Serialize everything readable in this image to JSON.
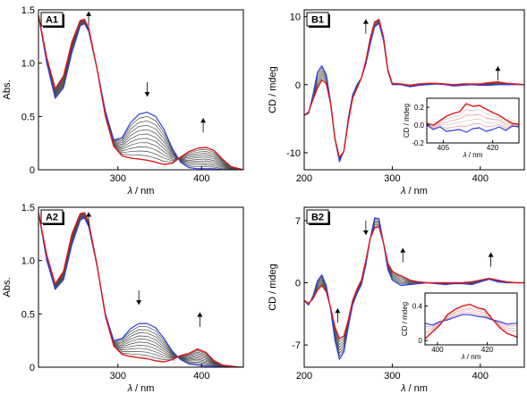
{
  "colors": {
    "blue": "#2b3de6",
    "red": "#e01818",
    "grey": "#4a4a4a",
    "light_red": "#f08c8c",
    "light_grey": "#c8c8c8"
  },
  "chart_data": [
    {
      "id": "A1",
      "type": "line",
      "panel_label": "A1",
      "ylabel": "Abs.",
      "xlabel_sym": "λ",
      "xlabel_unit": " / nm",
      "xlim": [
        205,
        450
      ],
      "ylim": [
        0,
        1.5
      ],
      "xticks": [
        300,
        400
      ],
      "yticks": [
        0.0,
        0.5,
        1.0,
        1.5
      ],
      "ytick_labels": [
        "0",
        "0.5",
        "1.0",
        "1.5"
      ],
      "series": [
        {
          "role": "start",
          "x": [
            205,
            215,
            225,
            235,
            245,
            255,
            260,
            265,
            275,
            285,
            295,
            305,
            315,
            325,
            335,
            345,
            355,
            365,
            375,
            385,
            395,
            405,
            415,
            425,
            435,
            445,
            450
          ],
          "y": [
            1.45,
            1.0,
            0.67,
            0.77,
            1.1,
            1.35,
            1.37,
            1.3,
            0.95,
            0.55,
            0.28,
            0.3,
            0.44,
            0.52,
            0.54,
            0.5,
            0.38,
            0.2,
            0.07,
            0.02,
            0.01,
            0.01,
            0.01,
            0.0,
            0.0,
            0.0,
            0.0
          ]
        },
        {
          "role": "end",
          "x": [
            205,
            215,
            225,
            235,
            245,
            255,
            260,
            265,
            275,
            285,
            295,
            305,
            315,
            325,
            335,
            345,
            355,
            365,
            375,
            385,
            395,
            405,
            415,
            425,
            435,
            445,
            450
          ],
          "y": [
            1.45,
            1.05,
            0.76,
            0.88,
            1.2,
            1.4,
            1.41,
            1.33,
            0.95,
            0.5,
            0.22,
            0.13,
            0.11,
            0.1,
            0.09,
            0.07,
            0.05,
            0.06,
            0.12,
            0.17,
            0.2,
            0.21,
            0.18,
            0.1,
            0.03,
            0.01,
            0.0
          ]
        }
      ],
      "n_intermediate": 10,
      "arrows": [
        {
          "x": 265,
          "y": 1.35,
          "dir": "up"
        },
        {
          "x": 335,
          "y": 0.82,
          "dir": "down"
        },
        {
          "x": 402,
          "y": 0.35,
          "dir": "up"
        }
      ]
    },
    {
      "id": "B1",
      "type": "line",
      "panel_label": "B1",
      "ylabel": "CD / mdeg",
      "xlabel_sym": "λ",
      "xlabel_unit": " / nm",
      "xlim": [
        200,
        450
      ],
      "ylim": [
        -12.5,
        11
      ],
      "xticks": [
        200,
        300,
        400
      ],
      "yticks": [
        -10,
        0,
        10
      ],
      "ytick_labels": [
        "-10",
        "0",
        "10"
      ],
      "series": [
        {
          "role": "start",
          "x": [
            200,
            205,
            210,
            215,
            220,
            225,
            230,
            235,
            240,
            245,
            250,
            255,
            260,
            265,
            270,
            275,
            280,
            285,
            290,
            295,
            300,
            310,
            320,
            330,
            340,
            350,
            360,
            370,
            380,
            390,
            400,
            410,
            420,
            430,
            440,
            450
          ],
          "y": [
            -4.5,
            -4.2,
            -1.5,
            1.8,
            2.8,
            1.5,
            -2.5,
            -8.0,
            -11.3,
            -9.8,
            -5.0,
            -1.5,
            0.0,
            1.0,
            3.0,
            6.0,
            8.5,
            9.0,
            6.5,
            2.0,
            0.0,
            0.0,
            -0.3,
            -0.1,
            0.0,
            0.1,
            0.0,
            -0.2,
            -0.1,
            0.0,
            -0.1,
            -0.1,
            0.0,
            0.0,
            0.0,
            0.0
          ]
        },
        {
          "role": "end",
          "x": [
            200,
            205,
            210,
            215,
            220,
            225,
            230,
            235,
            240,
            245,
            250,
            255,
            260,
            265,
            270,
            275,
            280,
            285,
            290,
            295,
            300,
            310,
            320,
            330,
            340,
            350,
            360,
            370,
            380,
            390,
            400,
            410,
            420,
            430,
            440,
            450
          ],
          "y": [
            -4.5,
            -4.0,
            -2.2,
            -0.5,
            0.7,
            0.2,
            -2.8,
            -8.0,
            -10.7,
            -9.8,
            -5.5,
            -2.0,
            -0.5,
            1.0,
            3.5,
            6.8,
            9.2,
            9.6,
            7.0,
            2.2,
            0.2,
            0.1,
            -0.1,
            0.1,
            0.2,
            0.2,
            0.1,
            0.0,
            0.1,
            0.1,
            0.1,
            0.3,
            0.4,
            0.2,
            0.1,
            0.0
          ]
        }
      ],
      "n_intermediate": 5,
      "arrows": [
        {
          "x": 270,
          "y": 7.5,
          "dir": "up"
        },
        {
          "x": 420,
          "y": 0.6,
          "dir": "up"
        }
      ],
      "inset": {
        "xlim": [
          400,
          428
        ],
        "ylim": [
          -0.2,
          0.3
        ],
        "xticks": [
          405,
          420
        ],
        "yticks": [
          -0.2,
          0.0,
          0.2
        ],
        "ytick_labels": [
          "-0.2",
          "0.0",
          "0.2"
        ],
        "ylabel": "CD / mdeg",
        "xlabel_sym": "λ",
        "xlabel_unit": " / nm",
        "series": [
          {
            "role": "start",
            "x": [
              400,
              402,
              404,
              406,
              408,
              410,
              412,
              414,
              416,
              418,
              420,
              422,
              424,
              426,
              428
            ],
            "y": [
              0.0,
              -0.05,
              -0.02,
              -0.07,
              -0.06,
              -0.05,
              -0.08,
              -0.04,
              -0.03,
              -0.07,
              -0.05,
              -0.02,
              -0.06,
              -0.01,
              -0.02
            ]
          },
          {
            "role": "end",
            "x": [
              400,
              402,
              404,
              406,
              408,
              410,
              412,
              414,
              416,
              418,
              420,
              422,
              424,
              426,
              428
            ],
            "y": [
              0.02,
              0.0,
              0.05,
              0.1,
              0.13,
              0.15,
              0.24,
              0.21,
              0.22,
              0.18,
              0.14,
              0.11,
              0.06,
              0.02,
              0.01
            ]
          }
        ]
      }
    },
    {
      "id": "A2",
      "type": "line",
      "panel_label": "A2",
      "ylabel": "Abs.",
      "xlabel_sym": "λ",
      "xlabel_unit": " / nm",
      "xlim": [
        205,
        450
      ],
      "ylim": [
        0,
        1.5
      ],
      "xticks": [
        300,
        400
      ],
      "yticks": [
        0.0,
        0.5,
        1.0,
        1.5
      ],
      "ytick_labels": [
        "0",
        "0.5",
        "1.0",
        "1.5"
      ],
      "series": [
        {
          "role": "start",
          "x": [
            205,
            215,
            225,
            235,
            245,
            255,
            260,
            265,
            275,
            285,
            295,
            305,
            315,
            325,
            335,
            345,
            355,
            365,
            375,
            385,
            395,
            405,
            415,
            425,
            435,
            445,
            450
          ],
          "y": [
            1.45,
            1.0,
            0.73,
            0.82,
            1.15,
            1.38,
            1.4,
            1.32,
            0.95,
            0.5,
            0.25,
            0.27,
            0.36,
            0.41,
            0.41,
            0.37,
            0.27,
            0.15,
            0.07,
            0.03,
            0.02,
            0.01,
            0.01,
            0.0,
            0.0,
            0.0,
            0.0
          ]
        },
        {
          "role": "end",
          "x": [
            205,
            215,
            225,
            235,
            245,
            255,
            260,
            265,
            275,
            285,
            295,
            305,
            315,
            325,
            335,
            345,
            355,
            365,
            375,
            385,
            395,
            405,
            415,
            425,
            435,
            445,
            450
          ],
          "y": [
            1.45,
            1.05,
            0.78,
            0.9,
            1.25,
            1.44,
            1.45,
            1.36,
            0.96,
            0.48,
            0.2,
            0.12,
            0.1,
            0.09,
            0.08,
            0.06,
            0.05,
            0.07,
            0.11,
            0.13,
            0.17,
            0.14,
            0.06,
            0.02,
            0.01,
            0.0,
            0.0
          ]
        }
      ],
      "n_intermediate": 10,
      "arrows": [
        {
          "x": 265,
          "y": 1.32,
          "dir": "up"
        },
        {
          "x": 325,
          "y": 0.72,
          "dir": "down"
        },
        {
          "x": 398,
          "y": 0.38,
          "dir": "up"
        }
      ]
    },
    {
      "id": "B2",
      "type": "line",
      "panel_label": "B2",
      "ylabel": "CD / mdeg",
      "xlabel_sym": "λ",
      "xlabel_unit": " / nm",
      "xlim": [
        200,
        450
      ],
      "ylim": [
        -9.5,
        8.5
      ],
      "xticks": [
        200,
        300,
        400
      ],
      "yticks": [
        -7,
        0,
        7
      ],
      "ytick_labels": [
        "-7",
        "0",
        "7"
      ],
      "series": [
        {
          "role": "start",
          "x": [
            200,
            205,
            210,
            215,
            220,
            225,
            230,
            235,
            240,
            245,
            250,
            255,
            260,
            265,
            270,
            275,
            280,
            285,
            290,
            295,
            300,
            305,
            310,
            320,
            330,
            340,
            350,
            360,
            370,
            380,
            390,
            400,
            410,
            420,
            430,
            440,
            450
          ],
          "y": [
            -2.0,
            -2.5,
            -1.5,
            0.2,
            0.9,
            -0.3,
            -3.0,
            -6.5,
            -8.6,
            -7.8,
            -5.0,
            -2.5,
            -1.2,
            -0.2,
            2.0,
            5.0,
            7.3,
            7.2,
            4.5,
            1.5,
            0.3,
            0.0,
            -0.3,
            -0.2,
            -0.1,
            0.0,
            -0.1,
            -0.2,
            -0.1,
            -0.1,
            -0.2,
            0.1,
            0.4,
            0.1,
            0.0,
            0.0,
            0.0
          ]
        },
        {
          "role": "end",
          "x": [
            200,
            205,
            210,
            215,
            220,
            225,
            230,
            235,
            240,
            245,
            250,
            255,
            260,
            265,
            270,
            275,
            280,
            285,
            290,
            295,
            300,
            305,
            310,
            320,
            330,
            340,
            350,
            360,
            370,
            380,
            390,
            400,
            410,
            420,
            430,
            440,
            450
          ],
          "y": [
            -2.0,
            -2.3,
            -1.8,
            -0.8,
            -0.3,
            -1.0,
            -2.8,
            -5.0,
            -6.3,
            -6.0,
            -4.2,
            -2.0,
            -0.7,
            0.3,
            2.5,
            5.0,
            6.2,
            6.3,
            4.5,
            2.2,
            1.3,
            1.0,
            0.8,
            0.3,
            0.1,
            0.0,
            0.0,
            0.0,
            0.0,
            0.0,
            0.1,
            0.3,
            0.5,
            0.3,
            0.1,
            0.0,
            0.0
          ]
        }
      ],
      "n_intermediate": 6,
      "arrows": [
        {
          "x": 270,
          "y": 7.0,
          "dir": "down"
        },
        {
          "x": 312,
          "y": 2.3,
          "dir": "up"
        },
        {
          "x": 238,
          "y": -4.5,
          "dir": "up"
        },
        {
          "x": 412,
          "y": 1.8,
          "dir": "up"
        }
      ],
      "inset": {
        "xlim": [
          395,
          432
        ],
        "ylim": [
          -0.05,
          0.55
        ],
        "xticks": [
          400,
          420
        ],
        "yticks": [
          0.0,
          0.4
        ],
        "ytick_labels": [
          "0",
          "0.4"
        ],
        "ylabel": "CD / mdeg",
        "xlabel_sym": "λ",
        "xlabel_unit": " / nm",
        "series": [
          {
            "role": "start",
            "x": [
              395,
              398,
              401,
              404,
              407,
              410,
              413,
              416,
              419,
              422,
              425,
              428,
              432
            ],
            "y": [
              0.2,
              0.18,
              0.22,
              0.24,
              0.27,
              0.3,
              0.3,
              0.28,
              0.27,
              0.24,
              0.22,
              0.19,
              0.2
            ]
          },
          {
            "role": "end",
            "x": [
              395,
              398,
              401,
              404,
              407,
              410,
              413,
              416,
              419,
              422,
              425,
              428,
              432
            ],
            "y": [
              0.02,
              0.1,
              0.18,
              0.3,
              0.36,
              0.4,
              0.42,
              0.38,
              0.36,
              0.25,
              0.15,
              0.08,
              0.04
            ]
          }
        ]
      }
    }
  ]
}
